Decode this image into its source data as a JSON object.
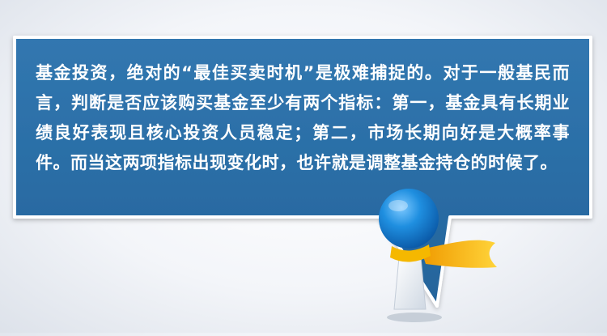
{
  "bubble": {
    "text": "基金投资，绝对的“最佳买卖时机”是极难捕捉的。对于一般基民而言，判断是否应该购买基金至少有两个指标：第一，基金具有长期业绩良好表现且核心投资人员稳定；第二，市场长期向好是大概率事件。而当这两项指标出现变化时，也许就是调整基金持仓的时候了。"
  },
  "colors": {
    "bubble_fill": "#2a6ea6",
    "bubble_stroke": "#ffffff",
    "character_head": "#1f8fe0",
    "character_body": "#ffffff",
    "scarf": "#f5b800"
  },
  "icons": {
    "character": "mascot-figure-icon"
  }
}
